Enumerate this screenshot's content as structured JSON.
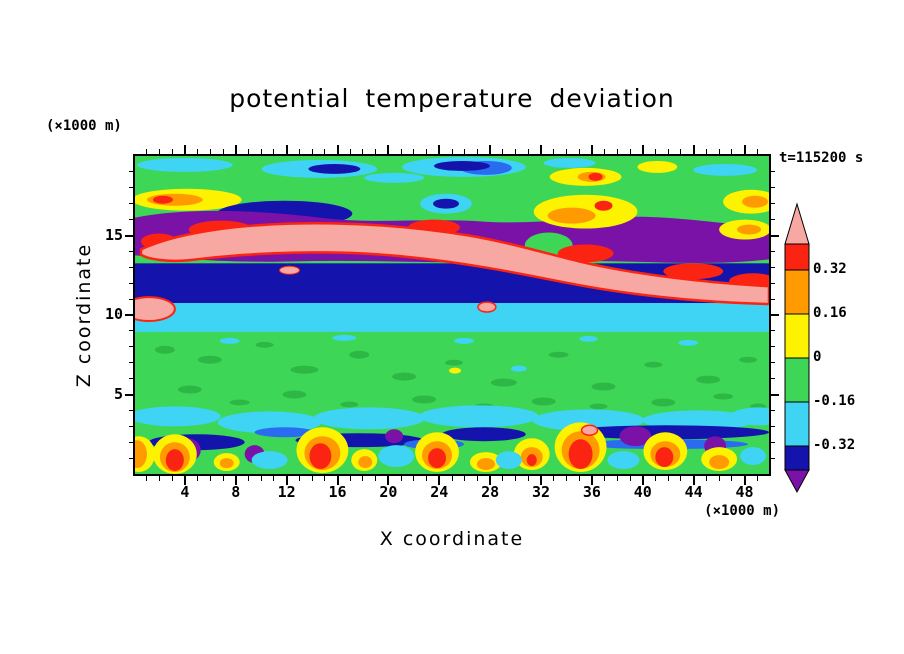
{
  "chart_data": {
    "type": "heatmap",
    "title": "potential temperature deviation",
    "xlabel": "X coordinate",
    "ylabel": "Z coordinate",
    "x_units": "(×1000 m)",
    "z_units": "(×1000 m)",
    "time_label": "t=115200 s",
    "xlim": [
      0,
      50
    ],
    "zlim": [
      0,
      20
    ],
    "x_ticks": [
      4,
      8,
      12,
      16,
      20,
      24,
      28,
      32,
      36,
      40,
      44,
      48
    ],
    "x_minor_step": 1,
    "z_ticks": [
      5,
      10,
      15
    ],
    "z_minor_step": 1,
    "grid": false,
    "legend_position": "right-colorbar",
    "colorbar": {
      "boundary_labels": [
        "0.32",
        "0.16",
        "0",
        "-0.16",
        "-0.32"
      ],
      "colors_high_to_low": [
        "salmon",
        "red",
        "orange",
        "yellow",
        "green",
        "cyan",
        "navy",
        "purple"
      ],
      "over_color": "salmon",
      "under_color": "purple"
    },
    "palette": {
      "green": "#3ed657",
      "green2": "#2db845",
      "cyan": "#3fd4f4",
      "blue": "#2a6cf0",
      "navy": "#1414ad",
      "purple": "#7a12a8",
      "red": "#fb2412",
      "orange": "#ff9a00",
      "yellow": "#fdf200",
      "salmon": "#f7a8a2",
      "frame": "#000000"
    },
    "field": {
      "description": "Filled-contour vertical cross-section (x vs z) of potential temperature deviation at t=115200 s; contour interval 0.16 between -0.32 and 0.32.",
      "bands": [
        {
          "z_range": [
            17.5,
            20.0
          ],
          "dominant": "near 0 (green) with cyan/navy pockets (-0.16 to -0.48) and yellow/red patches (0.16 to 0.48)"
        },
        {
          "z_range": [
            15.0,
            17.5
          ],
          "dominant": "strong negative band (navy/purple, below -0.32) with local yellow/orange positive spots"
        },
        {
          "z_range": [
            13.0,
            15.5
          ],
          "dominant": "strong positive sloping band (red rim, salmon core, above 0.32) descending toward x=50"
        },
        {
          "z_range": [
            11.0,
            13.0
          ],
          "dominant": "navy band (-0.32 to -0.48)"
        },
        {
          "z_range": [
            9.5,
            11.0
          ],
          "dominant": "cyan band (-0.16 to -0.32) with small salmon maxima near x=0 and x=28"
        },
        {
          "z_range": [
            3.0,
            9.5
          ],
          "dominant": "uniform green (-0.16 to 0) with weak speckles"
        },
        {
          "z_range": [
            0.5,
            3.0
          ],
          "dominant": "convective layer: alternating warm plumes (yellow/orange/red, up to >0.32) and cool pockets (cyan/navy/purple)"
        },
        {
          "z_range": [
            0.0,
            0.5
          ],
          "dominant": "green (near 0)"
        }
      ]
    }
  }
}
